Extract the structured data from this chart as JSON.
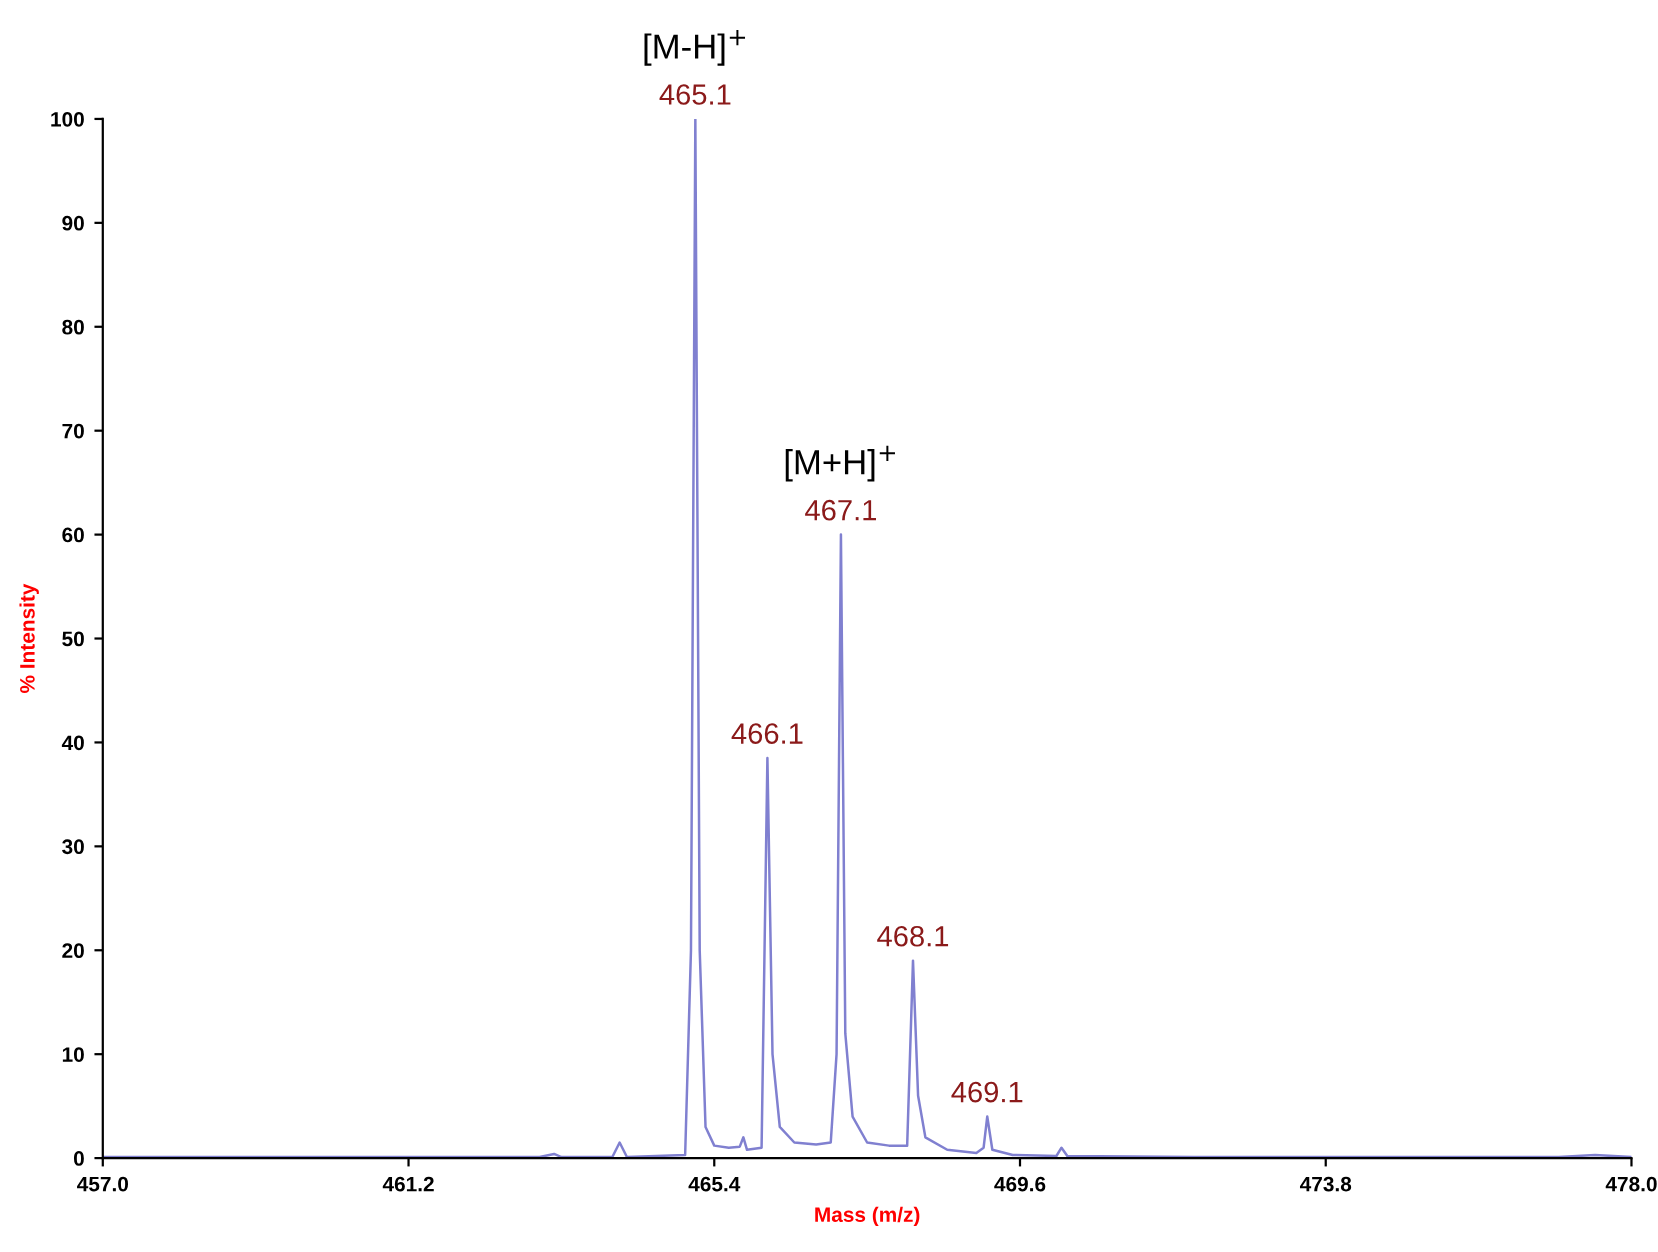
{
  "chart_data": {
    "type": "line",
    "xlabel": "Mass (m/z)",
    "ylabel": "% Intensity",
    "x": [
      457.0,
      459.0,
      461.0,
      463.0,
      463.2,
      463.3,
      464.0,
      464.1,
      464.2,
      465.0,
      465.08,
      465.14,
      465.2,
      465.28,
      465.4,
      465.6,
      465.75,
      465.8,
      465.85,
      466.05,
      466.13,
      466.2,
      466.3,
      466.5,
      466.8,
      467.0,
      467.08,
      467.14,
      467.2,
      467.3,
      467.5,
      467.8,
      468.05,
      468.13,
      468.2,
      468.3,
      468.6,
      469.0,
      469.1,
      469.15,
      469.22,
      469.5,
      470.1,
      470.17,
      470.25,
      472.0,
      477.0,
      477.5,
      478.0
    ],
    "series": [
      {
        "color": "#8080d0",
        "values": [
          0.1,
          0.1,
          0.1,
          0.1,
          0.4,
          0.1,
          0.1,
          1.5,
          0.1,
          0.3,
          20,
          100,
          20,
          3,
          1.2,
          1,
          1.1,
          2,
          0.8,
          1,
          38.5,
          10,
          3,
          1.5,
          1.3,
          1.5,
          10,
          60,
          12,
          4,
          1.5,
          1.2,
          1.2,
          19,
          6,
          2,
          0.8,
          0.5,
          1,
          4,
          0.8,
          0.3,
          0.2,
          1,
          0.2,
          0.1,
          0.1,
          0.3,
          0.1
        ]
      }
    ],
    "annotations": [
      {
        "text": "465.1",
        "x": 465.14,
        "y": 100
      },
      {
        "text": "466.1",
        "x": 466.13,
        "y": 38.5
      },
      {
        "text": "467.1",
        "x": 467.14,
        "y": 60
      },
      {
        "text": "468.1",
        "x": 468.13,
        "y": 19
      },
      {
        "text": "469.1",
        "x": 469.15,
        "y": 4
      },
      {
        "text": "[M-H]$^{+}$",
        "x": 465.14,
        "y": 100
      },
      {
        "text": "[M+H]$^{+}$",
        "x": 467.14,
        "y": 60
      }
    ],
    "xlim": [
      457.0,
      478.0
    ],
    "xticks": [
      {
        "value": 457.0,
        "label": "457.0"
      },
      461.2,
      465.4,
      469.6,
      473.8,
      {
        "value": 478.0,
        "label": "478.0"
      }
    ],
    "ylim": [
      0,
      100
    ],
    "yticks": [
      0,
      10,
      20,
      30,
      40,
      50,
      60,
      70,
      80,
      90,
      100
    ],
    "grid": false,
    "legend": false,
    "marker": "none",
    "line_style": "solid"
  }
}
